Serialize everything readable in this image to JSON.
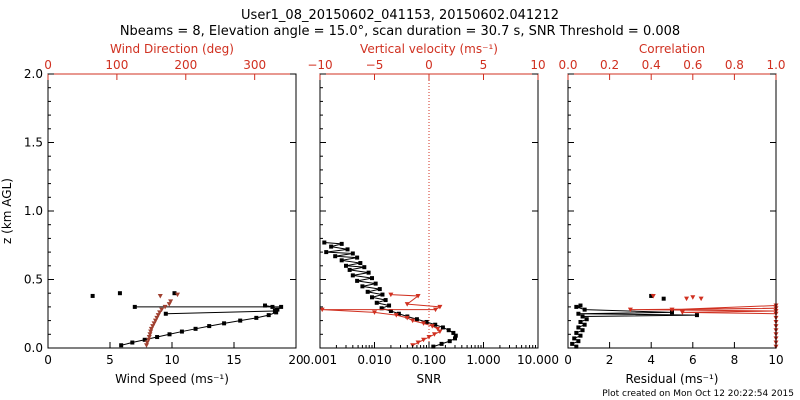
{
  "title": {
    "line1": "User1_08_20150602_041153, 20150602.041212",
    "line2": "Nbeams = 8, Elevation angle = 15.0°, scan duration = 30.7 s, SNR Threshold = 0.008"
  },
  "footer": "Plot created on Mon Oct 12 20:22:54 2015",
  "colors": {
    "primary": "#000000",
    "secondary": "#d03020",
    "overlay": "#a04030"
  },
  "chart_data": [
    {
      "type": "scatter",
      "panel": "wind",
      "ylabel": "z (km AGL)",
      "ylim": [
        0,
        2.0
      ],
      "y_ticks": [
        "0.0",
        "0.5",
        "1.0",
        "1.5",
        "2.0"
      ],
      "xlabel": "Wind Speed (ms⁻¹)",
      "xlim": [
        0,
        20
      ],
      "x_ticks": [
        "0",
        "5",
        "10",
        "15",
        "20"
      ],
      "top_xlabel": "Wind Direction (deg)",
      "top_xlim": [
        0,
        360
      ],
      "top_ticks": [
        "0",
        "100",
        "200",
        "300"
      ],
      "series": [
        {
          "axis": "bottom",
          "style": "black-line-markers",
          "points": [
            [
              5.9,
              0.02
            ],
            [
              6.8,
              0.04
            ],
            [
              7.8,
              0.06
            ],
            [
              8.8,
              0.08
            ],
            [
              9.8,
              0.1
            ],
            [
              10.8,
              0.12
            ],
            [
              11.9,
              0.14
            ],
            [
              13.0,
              0.16
            ],
            [
              14.2,
              0.18
            ],
            [
              15.5,
              0.2
            ],
            [
              16.8,
              0.22
            ],
            [
              17.8,
              0.24
            ],
            [
              18.4,
              0.26
            ],
            [
              18.5,
              0.28
            ],
            [
              18.1,
              0.3
            ],
            [
              17.5,
              0.31
            ]
          ]
        },
        {
          "axis": "bottom",
          "style": "black-line-markers",
          "points": [
            [
              7.0,
              0.3
            ],
            [
              18.8,
              0.3
            ]
          ]
        },
        {
          "axis": "bottom",
          "style": "black-line-markers",
          "points": [
            [
              9.5,
              0.25
            ],
            [
              18.3,
              0.27
            ]
          ]
        },
        {
          "axis": "bottom",
          "style": "black-markers",
          "points": [
            [
              3.6,
              0.38
            ],
            [
              5.8,
              0.4
            ],
            [
              10.2,
              0.4
            ]
          ]
        },
        {
          "axis": "top",
          "style": "brown-markers",
          "points": [
            [
              143,
              0.02
            ],
            [
              144,
              0.04
            ],
            [
              146,
              0.06
            ],
            [
              147,
              0.08
            ],
            [
              148,
              0.1
            ],
            [
              149,
              0.12
            ],
            [
              150,
              0.14
            ],
            [
              152,
              0.16
            ],
            [
              154,
              0.18
            ],
            [
              156,
              0.2
            ],
            [
              158,
              0.22
            ],
            [
              160,
              0.24
            ],
            [
              162,
              0.26
            ],
            [
              165,
              0.28
            ],
            [
              170,
              0.3
            ],
            [
              176,
              0.32
            ],
            [
              178,
              0.34
            ],
            [
              163,
              0.38
            ],
            [
              188,
              0.39
            ]
          ]
        }
      ]
    },
    {
      "type": "scatter",
      "panel": "snr",
      "xlabel": "SNR",
      "xscale": "log",
      "xlim": [
        0.001,
        10.0
      ],
      "x_ticks": [
        "0.001",
        "0.010",
        "0.100",
        "1.000",
        "10.000"
      ],
      "top_xlabel": "Vertical velocity (ms⁻¹)",
      "top_xlim": [
        -10,
        10
      ],
      "top_ticks": [
        "−10",
        "−5",
        "0",
        "5",
        "10"
      ],
      "zero_line": 0,
      "ylim": [
        0,
        2.0
      ],
      "series": [
        {
          "axis": "bottom",
          "style": "black-line-markers",
          "points": [
            [
              0.0012,
              0.77
            ],
            [
              0.0025,
              0.76
            ],
            [
              0.0016,
              0.74
            ],
            [
              0.0032,
              0.72
            ],
            [
              0.0013,
              0.7
            ],
            [
              0.004,
              0.69
            ],
            [
              0.0019,
              0.67
            ],
            [
              0.0048,
              0.66
            ],
            [
              0.0025,
              0.64
            ],
            [
              0.0055,
              0.62
            ],
            [
              0.003,
              0.6
            ],
            [
              0.0065,
              0.59
            ],
            [
              0.0035,
              0.57
            ],
            [
              0.0078,
              0.55
            ],
            [
              0.004,
              0.53
            ],
            [
              0.009,
              0.51
            ],
            [
              0.0048,
              0.49
            ],
            [
              0.0105,
              0.47
            ],
            [
              0.006,
              0.45
            ],
            [
              0.0125,
              0.43
            ],
            [
              0.0075,
              0.41
            ],
            [
              0.014,
              0.39
            ],
            [
              0.009,
              0.37
            ],
            [
              0.016,
              0.35
            ],
            [
              0.011,
              0.33
            ],
            [
              0.0185,
              0.31
            ],
            [
              0.0135,
              0.29
            ],
            [
              0.02,
              0.27
            ],
            [
              0.028,
              0.25
            ],
            [
              0.04,
              0.23
            ],
            [
              0.06,
              0.21
            ],
            [
              0.09,
              0.19
            ],
            [
              0.13,
              0.17
            ],
            [
              0.18,
              0.15
            ],
            [
              0.23,
              0.13
            ],
            [
              0.28,
              0.11
            ],
            [
              0.31,
              0.09
            ],
            [
              0.3,
              0.07
            ],
            [
              0.24,
              0.05
            ],
            [
              0.17,
              0.03
            ],
            [
              0.12,
              0.01
            ]
          ]
        },
        {
          "axis": "top",
          "style": "red-line-markers",
          "points": [
            [
              -1.5,
              0.02
            ],
            [
              -1.0,
              0.04
            ],
            [
              -0.5,
              0.06
            ],
            [
              0.0,
              0.08
            ],
            [
              0.5,
              0.1
            ],
            [
              1.0,
              0.12
            ],
            [
              0.8,
              0.14
            ],
            [
              0.3,
              0.16
            ],
            [
              -0.5,
              0.18
            ],
            [
              -1.5,
              0.2
            ],
            [
              -2.0,
              0.22
            ],
            [
              -3.0,
              0.24
            ],
            [
              -5.0,
              0.26
            ],
            [
              -9.8,
              0.28
            ],
            [
              0.6,
              0.28
            ],
            [
              1.0,
              0.3
            ],
            [
              -2.0,
              0.32
            ],
            [
              -1.0,
              0.38
            ],
            [
              -3.5,
              0.39
            ]
          ]
        }
      ]
    },
    {
      "type": "scatter",
      "panel": "residual",
      "xlabel": "Residual (ms⁻¹)",
      "xlim": [
        0,
        10
      ],
      "x_ticks": [
        "0",
        "2",
        "4",
        "6",
        "8",
        "10"
      ],
      "top_xlabel": "Correlation",
      "top_xlim": [
        0.0,
        1.0
      ],
      "top_ticks": [
        "0.0",
        "0.2",
        "0.4",
        "0.6",
        "0.8",
        "1.0"
      ],
      "ylim": [
        0,
        2.0
      ],
      "series": [
        {
          "axis": "bottom",
          "style": "black-line-markers",
          "points": [
            [
              0.4,
              0.01
            ],
            [
              0.2,
              0.03
            ],
            [
              0.5,
              0.05
            ],
            [
              0.3,
              0.07
            ],
            [
              0.6,
              0.09
            ],
            [
              0.4,
              0.11
            ],
            [
              0.7,
              0.13
            ],
            [
              0.5,
              0.15
            ],
            [
              0.8,
              0.17
            ],
            [
              0.6,
              0.19
            ],
            [
              0.9,
              0.21
            ],
            [
              0.7,
              0.23
            ],
            [
              6.2,
              0.24
            ],
            [
              0.5,
              0.25
            ],
            [
              5.0,
              0.26
            ],
            [
              0.8,
              0.28
            ],
            [
              0.4,
              0.3
            ],
            [
              0.6,
              0.31
            ]
          ]
        },
        {
          "axis": "bottom",
          "style": "black-markers",
          "points": [
            [
              4.0,
              0.38
            ],
            [
              4.6,
              0.36
            ]
          ]
        },
        {
          "axis": "top",
          "style": "red-line-markers",
          "points": [
            [
              1.0,
              0.01
            ],
            [
              1.0,
              0.04
            ],
            [
              1.0,
              0.07
            ],
            [
              1.0,
              0.1
            ],
            [
              1.0,
              0.13
            ],
            [
              1.0,
              0.16
            ],
            [
              1.0,
              0.19
            ],
            [
              1.0,
              0.22
            ],
            [
              1.0,
              0.25
            ],
            [
              0.55,
              0.26
            ],
            [
              1.0,
              0.27
            ],
            [
              0.3,
              0.28
            ],
            [
              1.0,
              0.29
            ],
            [
              0.5,
              0.28
            ],
            [
              1.0,
              0.31
            ]
          ]
        },
        {
          "axis": "top",
          "style": "red-markers",
          "points": [
            [
              0.57,
              0.36
            ],
            [
              0.6,
              0.37
            ],
            [
              0.64,
              0.36
            ],
            [
              0.41,
              0.38
            ]
          ]
        }
      ]
    }
  ]
}
